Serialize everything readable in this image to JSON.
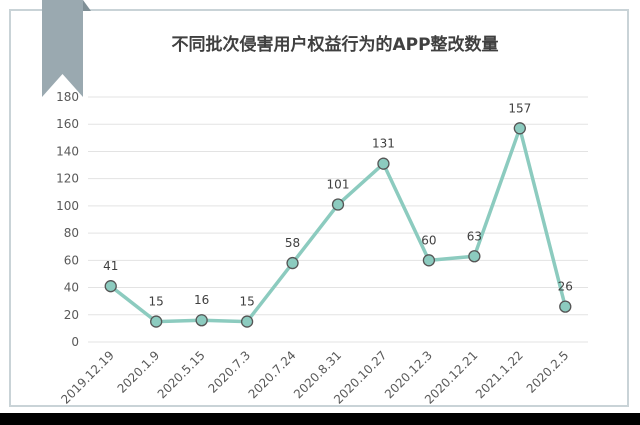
{
  "title": "不同批次侵害用户权益行为的APP整改数量",
  "colors": {
    "line": "#8ccbbf",
    "marker_fill": "#8ccbbf",
    "marker_stroke": "#555555",
    "grid": "#e3e3e3",
    "frame": "#c9d3d7",
    "ribbon": "#9aa9b0"
  },
  "chart_data": {
    "type": "line",
    "title": "不同批次侵害用户权益行为的APP整改数量",
    "xlabel": "",
    "ylabel": "",
    "categories": [
      "2019.12.19",
      "2020.1.9",
      "2020.5.15",
      "2020.7.3",
      "2020.7.24",
      "2020.8.31",
      "2020.10.27",
      "2020.12.3",
      "2020.12.21",
      "2021.1.22",
      "2020.2.5"
    ],
    "values": [
      41,
      15,
      16,
      15,
      58,
      101,
      131,
      60,
      63,
      157,
      26
    ],
    "data_labels": [
      "41",
      "15",
      "16",
      "15",
      "58",
      "101",
      "131",
      "60",
      "63",
      "157",
      "26"
    ],
    "ylim": [
      0,
      180
    ],
    "yticks": [
      0,
      20,
      40,
      60,
      80,
      100,
      120,
      140,
      160,
      180
    ],
    "grid": true,
    "legend": "none"
  }
}
